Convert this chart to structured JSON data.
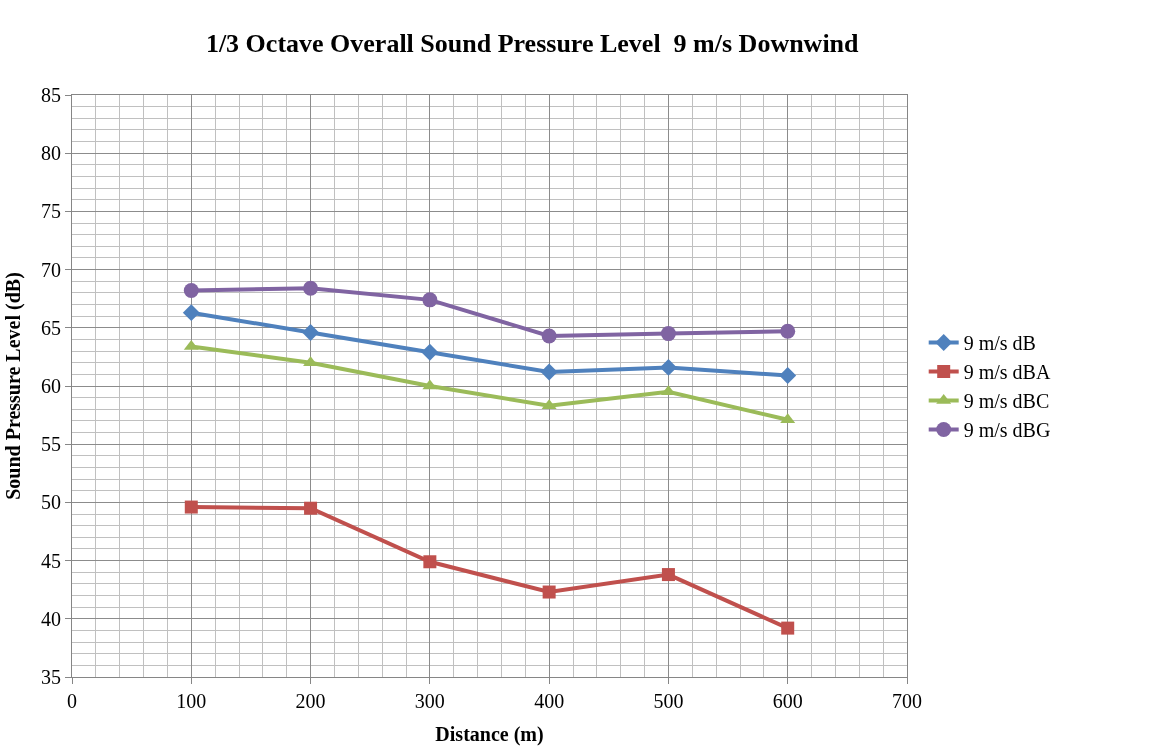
{
  "chart_data": {
    "type": "line",
    "title": "1/3 Octave Overall Sound Pressure Level  9 m/s Downwind",
    "xlabel": "Distance (m)",
    "ylabel": "Sound Pressure Level (dB)",
    "x": [
      100,
      200,
      300,
      400,
      500,
      600
    ],
    "series": [
      {
        "name": "9 m/s dB",
        "color": "#4f81bd",
        "marker": "diamond",
        "values": [
          66.3,
          64.6,
          62.9,
          61.2,
          61.6,
          60.9
        ]
      },
      {
        "name": "9 m/s dBA",
        "color": "#c0504d",
        "marker": "square",
        "values": [
          49.6,
          49.5,
          44.9,
          42.3,
          43.8,
          39.2
        ]
      },
      {
        "name": "9 m/s dBC",
        "color": "#9bbb59",
        "marker": "triangle",
        "values": [
          63.4,
          62.0,
          60.0,
          58.3,
          59.5,
          57.1
        ]
      },
      {
        "name": "9 m/s dBG",
        "color": "#8064a2",
        "marker": "circle",
        "values": [
          68.2,
          68.4,
          67.4,
          64.3,
          64.5,
          64.7
        ]
      }
    ],
    "xlim": [
      0,
      700
    ],
    "xticks": [
      0,
      100,
      200,
      300,
      400,
      500,
      600,
      700
    ],
    "ylim": [
      35,
      85
    ],
    "yticks": [
      35,
      40,
      45,
      50,
      55,
      60,
      65,
      70,
      75,
      80,
      85
    ],
    "grid": true,
    "legend": "right",
    "line_style": "solid"
  }
}
